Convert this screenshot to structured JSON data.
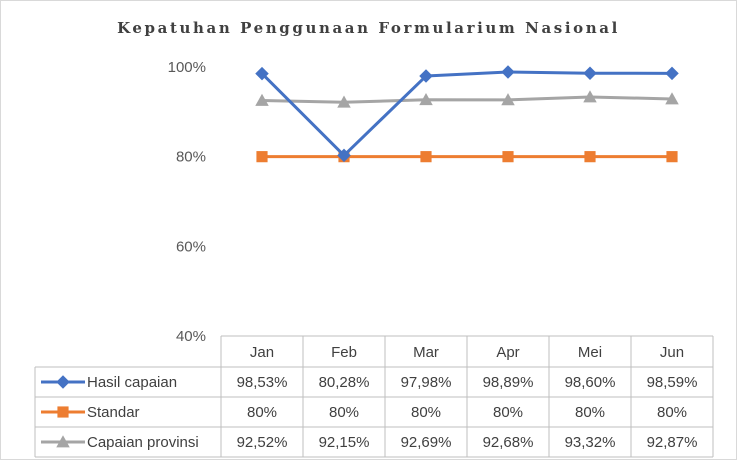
{
  "chart_data": {
    "type": "line",
    "title": "Kepatuhan Penggunaan Formularium Nasional",
    "categories": [
      "Jan",
      "Feb",
      "Mar",
      "Apr",
      "Mei",
      "Jun"
    ],
    "ylim": [
      40,
      100
    ],
    "yticks": [
      "100%",
      "80%",
      "60%",
      "40%"
    ],
    "grid": false,
    "legend": "data-table",
    "series": [
      {
        "name": "Hasil capaian",
        "values": [
          98.53,
          80.28,
          97.98,
          98.89,
          98.6,
          98.59
        ],
        "labels": [
          "98,53%",
          "80,28%",
          "97,98%",
          "98,89%",
          "98,60%",
          "98,59%"
        ],
        "color": "#4472c4",
        "marker": "diamond"
      },
      {
        "name": "Standar",
        "values": [
          80,
          80,
          80,
          80,
          80,
          80
        ],
        "labels": [
          "80%",
          "80%",
          "80%",
          "80%",
          "80%",
          "80%"
        ],
        "color": "#ed7d31",
        "marker": "square"
      },
      {
        "name": "Capaian provinsi",
        "values": [
          92.52,
          92.15,
          92.69,
          92.68,
          93.32,
          92.87
        ],
        "labels": [
          "92,52%",
          "92,15%",
          "92,69%",
          "92,68%",
          "93,32%",
          "92,87%"
        ],
        "color": "#a5a5a5",
        "marker": "triangle"
      }
    ]
  }
}
